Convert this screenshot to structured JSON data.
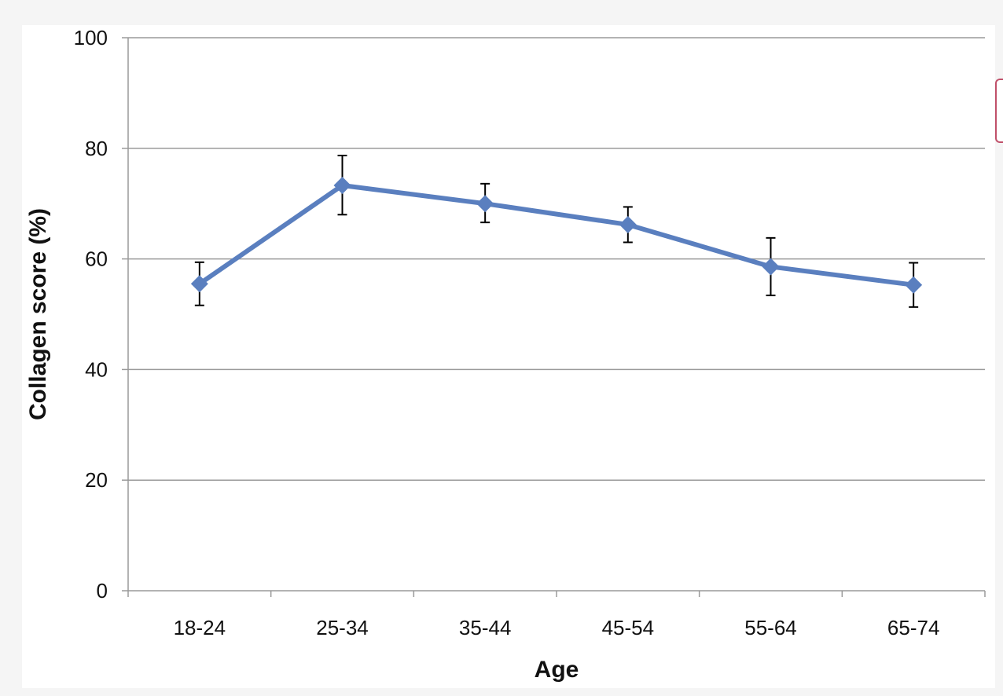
{
  "chart_data": {
    "type": "line",
    "categories": [
      "18-24",
      "25-34",
      "35-44",
      "45-54",
      "55-64",
      "65-74"
    ],
    "series": [
      {
        "values": [
          55.5,
          73.3,
          70.0,
          66.2,
          58.6,
          55.3
        ],
        "error_low": [
          51.6,
          68.0,
          66.6,
          63.0,
          53.4,
          51.3
        ],
        "error_high": [
          59.4,
          78.7,
          73.6,
          69.4,
          63.8,
          59.3
        ]
      }
    ],
    "xlabel": "Age",
    "ylabel": "Collagen score (%)",
    "ylim": [
      0,
      100
    ],
    "yticks": [
      "0",
      "20",
      "40",
      "60",
      "80",
      "100"
    ],
    "grid": true,
    "marker": "diamond",
    "line_color": "#5a7fbf",
    "grid_color": "#9a9a9a",
    "errorbar_color": "#000000"
  }
}
